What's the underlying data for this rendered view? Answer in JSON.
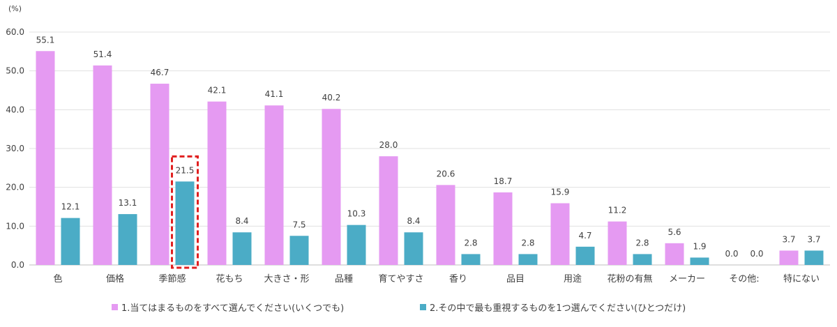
{
  "chart_data": {
    "type": "bar",
    "unit": "(%)",
    "categories": [
      "色",
      "価格",
      "季節感",
      "花もち",
      "大きさ・形",
      "品種",
      "育てやすさ",
      "香り",
      "品目",
      "用途",
      "花粉の有無",
      "メーカー",
      "その他:",
      "特にない"
    ],
    "series": [
      {
        "name": "1.当てはまるものをすべて選んでください(いくつでも)",
        "color": "#e59af2",
        "values": [
          55.1,
          51.4,
          46.7,
          42.1,
          41.1,
          40.2,
          28.0,
          20.6,
          18.7,
          15.9,
          11.2,
          5.6,
          0.0,
          3.7
        ]
      },
      {
        "name": "2.その中で最も重視するものを1つ選んでください(ひとつだけ)",
        "color": "#4bacc6",
        "values": [
          12.1,
          13.1,
          21.5,
          8.4,
          7.5,
          10.3,
          8.4,
          2.8,
          2.8,
          4.7,
          2.8,
          1.9,
          0.0,
          3.7
        ]
      }
    ],
    "yticks": [
      "0.0",
      "10.0",
      "20.0",
      "30.0",
      "40.0",
      "50.0",
      "60.0"
    ],
    "ylim": [
      0,
      60
    ],
    "grid": true,
    "legend": "bottom",
    "highlight": {
      "category_index": 2,
      "series_index": 1,
      "style": "red-dashed-box"
    }
  }
}
